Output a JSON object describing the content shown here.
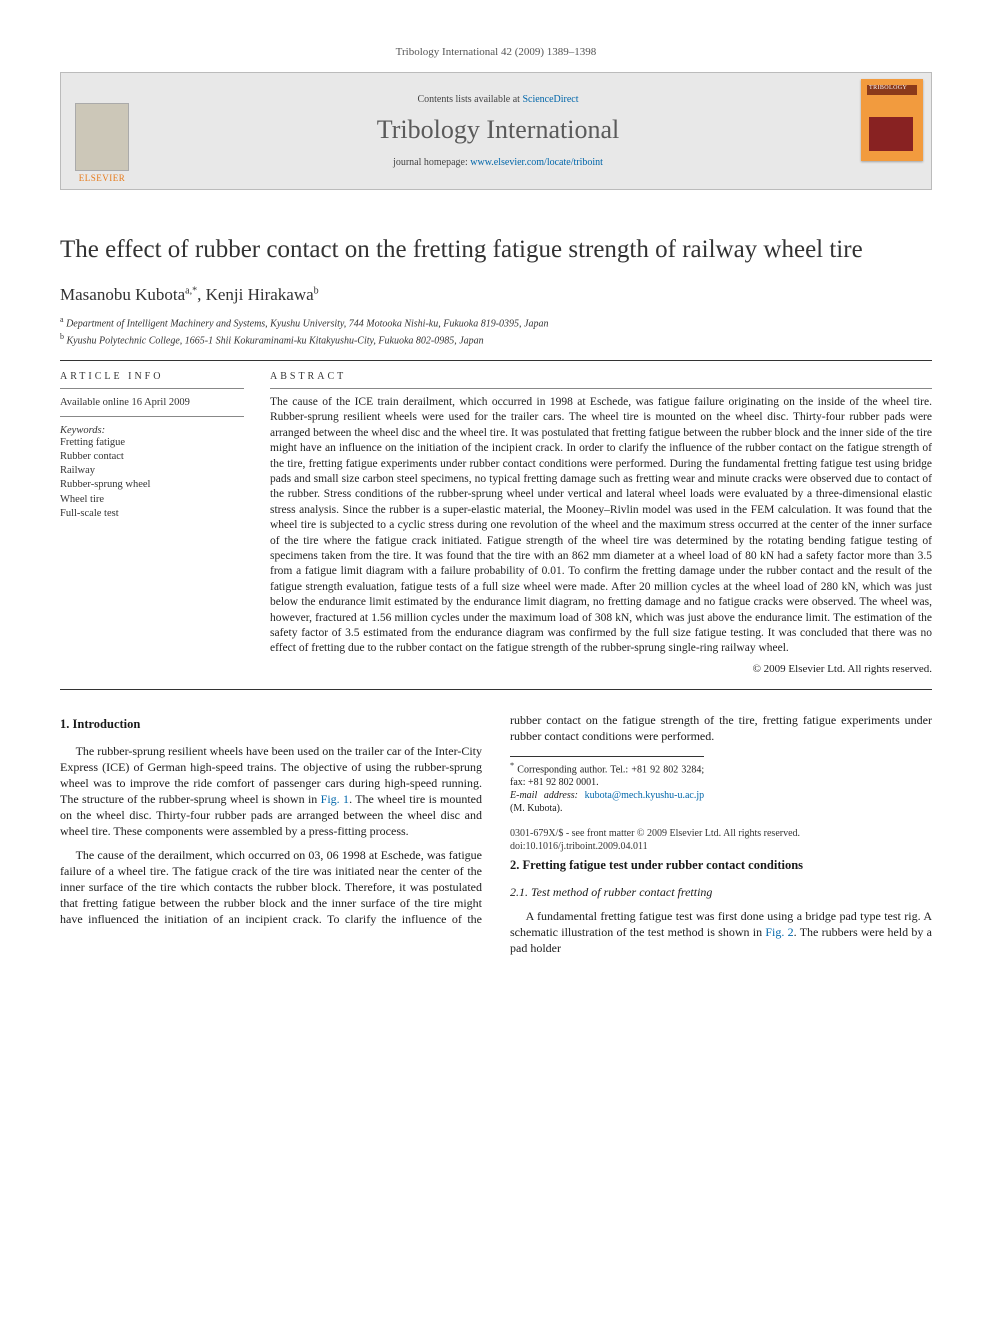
{
  "header_line": "Tribology International 42 (2009) 1389–1398",
  "banner": {
    "contents_prefix": "Contents lists available at ",
    "contents_link": "ScienceDirect",
    "journal_name": "Tribology International",
    "homepage_prefix": "journal homepage: ",
    "homepage_url": "www.elsevier.com/locate/triboint",
    "publisher": "ELSEVIER",
    "cover_label": "TRIBOLOGY"
  },
  "title": "The effect of rubber contact on the fretting fatigue strength of railway wheel tire",
  "authors_html": "Masanobu Kubota",
  "author1_sup": "a,",
  "author1_ast": "*",
  "author_sep": ", ",
  "author2": "Kenji Hirakawa",
  "author2_sup": "b",
  "affiliations": [
    {
      "sup": "a",
      "text": "Department of Intelligent Machinery and Systems, Kyushu University, 744 Motooka Nishi-ku, Fukuoka 819-0395, Japan"
    },
    {
      "sup": "b",
      "text": "Kyushu Polytechnic College, 1665-1 Shii Kokuraminami-ku Kitakyushu-City, Fukuoka 802-0985, Japan"
    }
  ],
  "labels": {
    "article_info": "ARTICLE INFO",
    "abstract": "ABSTRACT",
    "keywords": "Keywords:"
  },
  "available": "Available online 16 April 2009",
  "keywords": [
    "Fretting fatigue",
    "Rubber contact",
    "Railway",
    "Rubber-sprung wheel",
    "Wheel tire",
    "Full-scale test"
  ],
  "abstract": "The cause of the ICE train derailment, which occurred in 1998 at Eschede, was fatigue failure originating on the inside of the wheel tire. Rubber-sprung resilient wheels were used for the trailer cars. The wheel tire is mounted on the wheel disc. Thirty-four rubber pads were arranged between the wheel disc and the wheel tire. It was postulated that fretting fatigue between the rubber block and the inner side of the tire might have an influence on the initiation of the incipient crack. In order to clarify the influence of the rubber contact on the fatigue strength of the tire, fretting fatigue experiments under rubber contact conditions were performed. During the fundamental fretting fatigue test using bridge pads and small size carbon steel specimens, no typical fretting damage such as fretting wear and minute cracks were observed due to contact of the rubber. Stress conditions of the rubber-sprung wheel under vertical and lateral wheel loads were evaluated by a three-dimensional elastic stress analysis. Since the rubber is a super-elastic material, the Mooney–Rivlin model was used in the FEM calculation. It was found that the wheel tire is subjected to a cyclic stress during one revolution of the wheel and the maximum stress occurred at the center of the inner surface of the tire where the fatigue crack initiated. Fatigue strength of the wheel tire was determined by the rotating bending fatigue testing of specimens taken from the tire. It was found that the tire with an 862 mm diameter at a wheel load of 80 kN had a safety factor more than 3.5 from a fatigue limit diagram with a failure probability of 0.01. To confirm the fretting damage under the rubber contact and the result of the fatigue strength evaluation, fatigue tests of a full size wheel were made. After 20 million cycles at the wheel load of 280 kN, which was just below the endurance limit estimated by the endurance limit diagram, no fretting damage and no fatigue cracks were observed. The wheel was, however, fractured at 1.56 million cycles under the maximum load of 308 kN, which was just above the endurance limit. The estimation of the safety factor of 3.5 estimated from the endurance diagram was confirmed by the full size fatigue testing. It was concluded that there was no effect of fretting due to the rubber contact on the fatigue strength of the rubber-sprung single-ring railway wheel.",
  "copyright": "© 2009 Elsevier Ltd. All rights reserved.",
  "sections": {
    "s1_title": "1.  Introduction",
    "s1_p1a": "The rubber-sprung resilient wheels have been used on the trailer car of the Inter-City Express (ICE) of German high-speed trains. The objective of using the rubber-sprung wheel was to improve the ride comfort of passenger cars during high-speed running. The structure of the rubber-sprung wheel is shown in ",
    "s1_p1_link": "Fig. 1",
    "s1_p1b": ". The wheel tire is mounted on the wheel disc. Thirty-four rubber pads are arranged between the wheel disc and wheel tire. These components were assembled by a press-fitting process.",
    "s1_p2": "The cause of the derailment, which occurred on 03, 06 1998 at Eschede, was fatigue failure of a wheel tire. The fatigue crack of the tire was initiated near the center of the inner surface of the tire which contacts the rubber block. Therefore, it was postulated that fretting fatigue between the rubber block and the inner surface of the tire might have influenced the initiation of an incipient crack. To clarify the influence of the rubber contact on the fatigue strength of the tire, fretting fatigue experiments under rubber contact conditions were performed.",
    "s2_title": "2.  Fretting fatigue test under rubber contact conditions",
    "s21_title": "2.1.  Test method of rubber contact fretting",
    "s21_p1a": "A fundamental fretting fatigue test was first done using a bridge pad type test rig. A schematic illustration of the test method is shown in ",
    "s21_p1_link": "Fig. 2",
    "s21_p1b": ". The rubbers were held by a pad holder"
  },
  "footnote": {
    "corr": "Corresponding author. Tel.: +81 92 802 3284; fax: +81 92 802 0001.",
    "email_label": "E-mail address:",
    "email": "kubota@mech.kyushu-u.ac.jp",
    "email_who": "(M. Kubota)."
  },
  "bottom": {
    "line1": "0301-679X/$ - see front matter © 2009 Elsevier Ltd. All rights reserved.",
    "line2": "doi:10.1016/j.triboint.2009.04.011"
  },
  "colors": {
    "link": "#0066aa",
    "elsevier_orange": "#e67a1a",
    "cover_orange": "#f29b3e"
  }
}
